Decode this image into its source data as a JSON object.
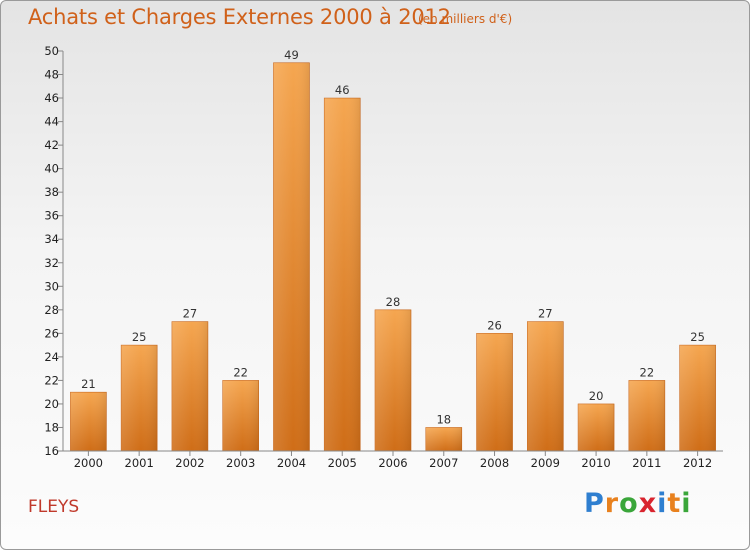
{
  "title": "Achats et Charges Externes 2000 à 2012",
  "subtitle": "(en milliers d'€)",
  "city": "FLEYS",
  "logo": {
    "letters": [
      {
        "ch": "P",
        "color": "#2f7fd0"
      },
      {
        "ch": "r",
        "color": "#e8811e"
      },
      {
        "ch": "o",
        "color": "#3aa63a"
      },
      {
        "ch": "x",
        "color": "#d9242e"
      },
      {
        "ch": "i",
        "color": "#2f7fd0"
      },
      {
        "ch": "t",
        "color": "#e8811e"
      },
      {
        "ch": "i",
        "color": "#3aa63a"
      }
    ]
  },
  "colors": {
    "bar_light": "#f5a650",
    "bar_dark": "#cf6d17",
    "axis": "#888888",
    "grid": "#cfcfcf"
  },
  "chart_data": {
    "type": "bar",
    "categories": [
      "2000",
      "2001",
      "2002",
      "2003",
      "2004",
      "2005",
      "2006",
      "2007",
      "2008",
      "2009",
      "2010",
      "2011",
      "2012"
    ],
    "values": [
      21,
      25,
      27,
      22,
      49,
      46,
      28,
      18,
      26,
      27,
      20,
      22,
      25
    ],
    "ylim": [
      16,
      50
    ],
    "yticks": [
      16,
      18,
      20,
      22,
      24,
      26,
      28,
      30,
      32,
      34,
      36,
      38,
      40,
      42,
      44,
      46,
      48,
      50
    ],
    "grid": false
  }
}
